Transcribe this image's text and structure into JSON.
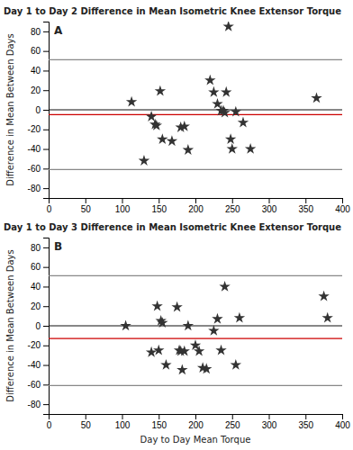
{
  "chart_data": [
    {
      "type": "scatter",
      "title": "Day 1 to Day 2 Difference in Mean Isometric Knee Extensor Torque",
      "annotation": "A",
      "ylabel": "Difference in Mean Between Days",
      "x": [
        113,
        130,
        140,
        145,
        147,
        152,
        155,
        168,
        180,
        185,
        190,
        220,
        225,
        230,
        235,
        238,
        240,
        242,
        245,
        248,
        250,
        255,
        265,
        275,
        365
      ],
      "values": [
        8,
        -52,
        -7,
        -15,
        -16,
        19,
        -30,
        -32,
        -18,
        -17,
        -41,
        30,
        18,
        6,
        -1,
        -1,
        -3,
        18,
        85,
        -30,
        -40,
        -2,
        -13,
        -40,
        12
      ],
      "color": "#333333",
      "marker": "star",
      "reference_lines": [
        {
          "value": 51,
          "color": "#888888"
        },
        {
          "value": -61,
          "color": "#888888"
        },
        {
          "value": 0,
          "color": "#111111"
        },
        {
          "value": -5,
          "color": "#cc0000"
        }
      ],
      "xlim": [
        0,
        400
      ],
      "ylim": [
        -90,
        90
      ],
      "xticks": [
        0,
        50,
        100,
        150,
        200,
        250,
        300,
        350,
        400
      ],
      "yticks": [
        -80,
        -60,
        -40,
        -20,
        0,
        20,
        40,
        60,
        80
      ],
      "grid": false
    },
    {
      "type": "scatter",
      "title": "Day 1 to Day 3 Difference in Mean Isometric Knee Extensor Torque",
      "annotation": "B",
      "xlabel": "Day to Day Mean Torque",
      "ylabel": "Difference in Mean Between Days",
      "x": [
        105,
        140,
        148,
        150,
        153,
        155,
        160,
        175,
        178,
        180,
        182,
        185,
        190,
        200,
        205,
        210,
        215,
        225,
        230,
        235,
        240,
        255,
        260,
        375,
        380
      ],
      "values": [
        0,
        -27,
        20,
        -25,
        5,
        3,
        -40,
        19,
        -25,
        -26,
        -45,
        -26,
        0,
        -20,
        -26,
        -43,
        -44,
        -5,
        7,
        -25,
        40,
        -40,
        8,
        30,
        8
      ],
      "color": "#333333",
      "marker": "star",
      "reference_lines": [
        {
          "value": 51,
          "color": "#888888"
        },
        {
          "value": -61,
          "color": "#888888"
        },
        {
          "value": 0,
          "color": "#111111"
        },
        {
          "value": -13,
          "color": "#cc0000"
        }
      ],
      "xlim": [
        0,
        400
      ],
      "ylim": [
        -90,
        90
      ],
      "xticks": [
        0,
        50,
        100,
        150,
        200,
        250,
        300,
        350,
        400
      ],
      "yticks": [
        -80,
        -60,
        -40,
        -20,
        0,
        20,
        40,
        60,
        80
      ],
      "grid": false
    }
  ]
}
